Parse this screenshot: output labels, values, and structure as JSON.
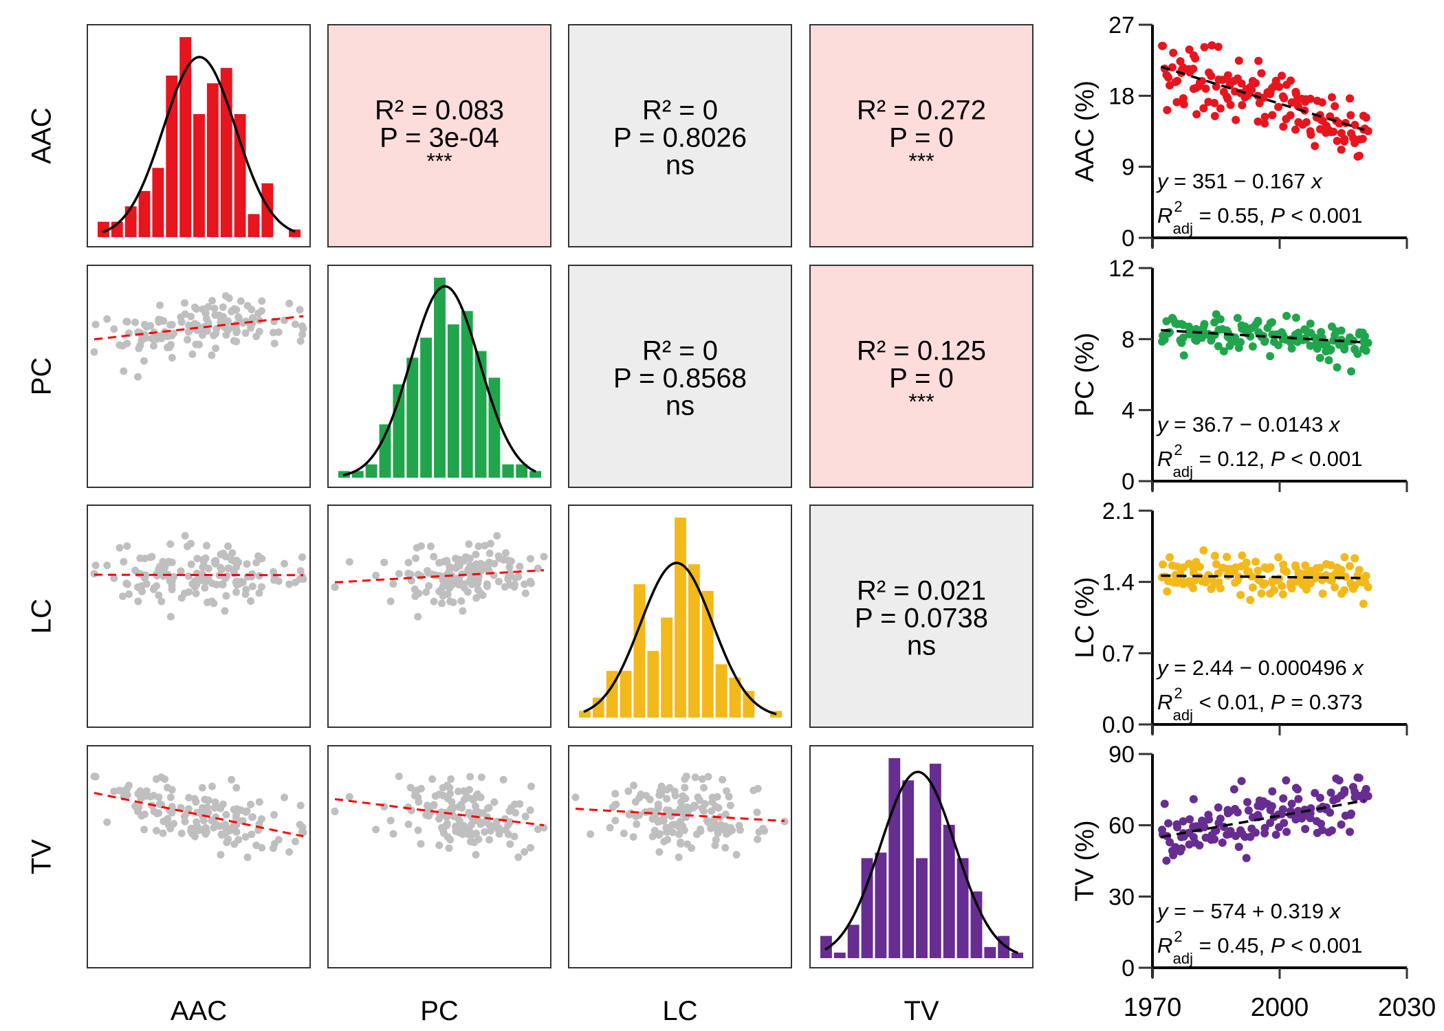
{
  "chart_data": [
    {
      "type": "scatter-matrix",
      "variables": [
        "AAC",
        "PC",
        "LC",
        "TV"
      ],
      "colors": {
        "AAC": "#e8141e",
        "PC": "#21a54c",
        "LC": "#f3b91b",
        "TV": "#672d91"
      },
      "lower_point_color": "#bfbfbf",
      "lower_line_color": "#ff0000",
      "significant_bg": "#fddcdc",
      "ns_bg": "#ededed",
      "diagonal_histograms": {
        "AAC": [
          2,
          2,
          4,
          6,
          9,
          21,
          26,
          16,
          20,
          22,
          16,
          3,
          7,
          0,
          1
        ],
        "PC": [
          1,
          1,
          2,
          8,
          14,
          18,
          21,
          30,
          23,
          25,
          19,
          15,
          2,
          2,
          1
        ],
        "LC": [
          1,
          3,
          7,
          7,
          20,
          10,
          15,
          30,
          23,
          19,
          8,
          6,
          4,
          0,
          1
        ],
        "TV": [
          4,
          1,
          6,
          18,
          19,
          36,
          32,
          18,
          35,
          24,
          18,
          12,
          2,
          4,
          1
        ]
      },
      "upper_stats": [
        {
          "row": "AAC",
          "col": "PC",
          "r2": "R² = 0.083",
          "p": "P = 3e-04",
          "sig": "***",
          "significant": true
        },
        {
          "row": "AAC",
          "col": "LC",
          "r2": "R² = 0",
          "p": "P = 0.8026",
          "sig": "ns",
          "significant": false
        },
        {
          "row": "AAC",
          "col": "TV",
          "r2": "R² = 0.272",
          "p": "P = 0",
          "sig": "***",
          "significant": true
        },
        {
          "row": "PC",
          "col": "LC",
          "r2": "R² = 0",
          "p": "P = 0.8568",
          "sig": "ns",
          "significant": false
        },
        {
          "row": "PC",
          "col": "TV",
          "r2": "R² = 0.125",
          "p": "P = 0",
          "sig": "***",
          "significant": true
        },
        {
          "row": "LC",
          "col": "TV",
          "r2": "R² = 0.021",
          "p": "P = 0.0738",
          "sig": "ns",
          "significant": false
        }
      ]
    },
    {
      "type": "scatter",
      "xlim": [
        1970,
        2030
      ],
      "xticks": [
        "1970",
        "2000",
        "2030"
      ],
      "year_range": [
        1972,
        2020
      ],
      "panels": [
        {
          "var": "AAC",
          "ylabel": "AAC (%)",
          "ylim": [
            0,
            27
          ],
          "yticks": [
            "0",
            "9",
            "18",
            "27"
          ],
          "intercept": 351,
          "slope": -0.167,
          "noise_sd": 2.2,
          "equation": {
            "lhs": "y",
            "rhs": " = 351 − 0.167 ",
            "var": "x"
          },
          "fit": {
            "R": "R",
            "sup": "2",
            "sub": "adj",
            "r2": " = 0.55, ",
            "P": "P",
            "p": " < 0.001"
          }
        },
        {
          "var": "PC",
          "ylabel": "PC (%)",
          "ylim": [
            0,
            12
          ],
          "yticks": [
            "0",
            "4",
            "8",
            "12"
          ],
          "intercept": 36.7,
          "slope": -0.0143,
          "noise_sd": 0.5,
          "equation": {
            "lhs": "y",
            "rhs": " = 36.7 − 0.0143 ",
            "var": "x"
          },
          "fit": {
            "R": "R",
            "sup": "2",
            "sub": "adj",
            "r2": " = 0.12, ",
            "P": "P",
            "p": " < 0.001"
          }
        },
        {
          "var": "LC",
          "ylabel": "LC (%)",
          "ylim": [
            0,
            2.1
          ],
          "yticks": [
            "0.0",
            "0.7",
            "1.4",
            "2.1"
          ],
          "intercept": 2.44,
          "slope": -0.000496,
          "noise_sd": 0.1,
          "equation": {
            "lhs": "y",
            "rhs": " = 2.44 − 0.000496 ",
            "var": "x"
          },
          "fit": {
            "R": "R",
            "sup": "2",
            "sub": "adj",
            "r2": " < 0.01, ",
            "P": "P",
            "p": " = 0.373"
          }
        },
        {
          "var": "TV",
          "ylabel": "TV (%)",
          "ylim": [
            0,
            90
          ],
          "yticks": [
            "0",
            "30",
            "60",
            "90"
          ],
          "intercept": -574,
          "slope": 0.319,
          "noise_sd": 5.5,
          "equation": {
            "lhs": "y",
            "rhs": " = − 574 + 0.319 ",
            "var": "x"
          },
          "fit": {
            "R": "R",
            "sup": "2",
            "sub": "adj",
            "r2": " = 0.45, ",
            "P": "P",
            "p": " < 0.001"
          }
        }
      ]
    }
  ]
}
